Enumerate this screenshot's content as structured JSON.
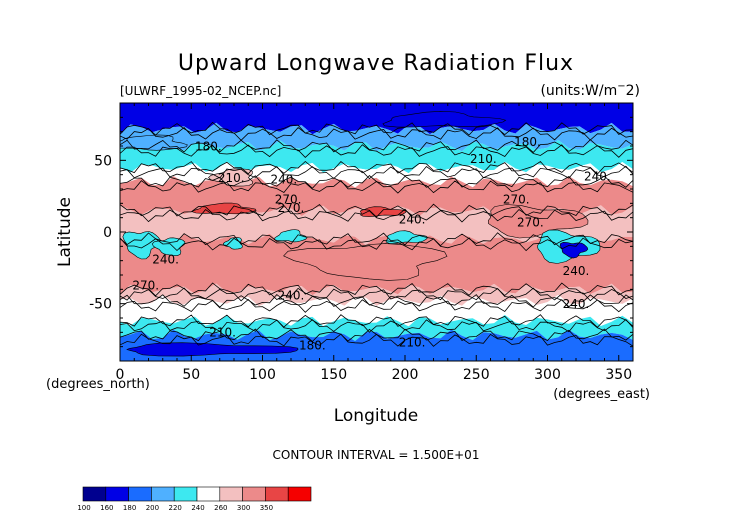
{
  "chart_data": {
    "type": "contour",
    "title": "Upward Longwave Radiation Flux",
    "file_label": "[ULWRF_1995-02_NCEP.nc]",
    "units_label": "(units:W/m^-2)",
    "xlabel": "Longitude",
    "ylabel": "Latitude",
    "x_unit_label": "(degrees_east)",
    "y_unit_label": "(degrees_north)",
    "xlim": [
      0,
      360
    ],
    "ylim": [
      -90,
      90
    ],
    "xticks": [
      "0",
      "50",
      "100",
      "150",
      "200",
      "250",
      "300",
      "350"
    ],
    "yticks": [
      "50",
      "0",
      "-50"
    ],
    "footer": "CONTOUR INTERVAL = 1.500E+01",
    "contour_labels": [
      "180",
      "210",
      "180",
      "210",
      "240",
      "270",
      "270",
      "240",
      "270",
      "240",
      "240",
      "270",
      "240",
      "240",
      "210",
      "180",
      "210",
      "240",
      "270"
    ],
    "colorbar": {
      "labels": [
        "100",
        "160",
        "180",
        "200",
        "220",
        "240",
        "260",
        "300",
        "350"
      ],
      "colors": [
        "#00008f",
        "#0000e6",
        "#1a6cff",
        "#4fb0ff",
        "#3de8f0",
        "#ffffff",
        "#f3c0c0",
        "#ec8a8a",
        "#e84545",
        "#f50000"
      ]
    },
    "bands": [
      {
        "lat_top": 90,
        "lat_bot": 72,
        "value": 150
      },
      {
        "lat_top": 72,
        "lat_bot": 60,
        "value": 185
      },
      {
        "lat_top": 60,
        "lat_bot": 45,
        "value": 212
      },
      {
        "lat_top": 45,
        "lat_bot": 35,
        "value": 228
      },
      {
        "lat_top": 35,
        "lat_bot": 15,
        "value": 262
      },
      {
        "lat_top": 15,
        "lat_bot": -5,
        "value": 242
      },
      {
        "lat_top": -5,
        "lat_bot": -40,
        "value": 268
      },
      {
        "lat_top": -40,
        "lat_bot": -48,
        "value": 240
      },
      {
        "lat_top": -48,
        "lat_bot": -62,
        "value": 222
      },
      {
        "lat_top": -62,
        "lat_bot": -72,
        "value": 205
      },
      {
        "lat_top": -72,
        "lat_bot": -90,
        "value": 172
      }
    ]
  }
}
